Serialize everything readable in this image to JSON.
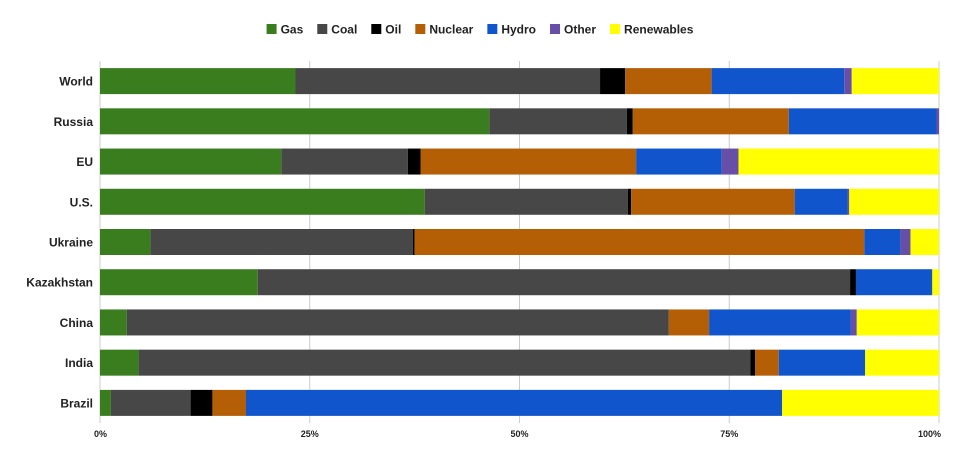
{
  "chart_data": {
    "type": "bar",
    "orientation": "horizontal",
    "stacked": "percent",
    "legend_position": "top",
    "grid": true,
    "xlim": [
      0,
      100
    ],
    "x_ticks": [
      {
        "value": 0,
        "label": "0%"
      },
      {
        "value": 25,
        "label": "25%"
      },
      {
        "value": 50,
        "label": "50%"
      },
      {
        "value": 75,
        "label": "75%"
      },
      {
        "value": 100,
        "label": "100%"
      }
    ],
    "categories": [
      "World",
      "Russia",
      "EU",
      "U.S.",
      "Ukraine",
      "Kazakhstan",
      "China",
      "India",
      "Brazil"
    ],
    "series": [
      {
        "name": "Gas",
        "color": "#3a7d1e",
        "values": [
          23.3,
          46.4,
          21.6,
          38.7,
          6.0,
          18.8,
          3.2,
          4.6,
          1.3
        ]
      },
      {
        "name": "Coal",
        "color": "#474747",
        "values": [
          36.3,
          16.4,
          15.1,
          24.2,
          31.3,
          70.6,
          64.6,
          72.9,
          9.5
        ]
      },
      {
        "name": "Oil",
        "color": "#000000",
        "values": [
          3.0,
          0.7,
          1.5,
          0.4,
          0.2,
          0.7,
          0.0,
          0.6,
          2.6
        ]
      },
      {
        "name": "Nuclear",
        "color": "#b45f06",
        "values": [
          10.3,
          18.6,
          25.7,
          19.5,
          53.6,
          0.0,
          4.8,
          2.8,
          4.0
        ]
      },
      {
        "name": "Hydro",
        "color": "#1155cc",
        "values": [
          15.8,
          17.6,
          10.2,
          6.3,
          4.3,
          9.1,
          16.9,
          10.3,
          63.9
        ]
      },
      {
        "name": "Other",
        "color": "#674ea7",
        "values": [
          0.9,
          0.3,
          2.0,
          0.2,
          1.2,
          0.0,
          0.7,
          0.0,
          0.0
        ]
      },
      {
        "name": "Renewables",
        "color": "#ffff00",
        "values": [
          10.4,
          0.0,
          23.9,
          10.7,
          3.4,
          0.8,
          9.8,
          8.8,
          18.7
        ]
      }
    ]
  }
}
